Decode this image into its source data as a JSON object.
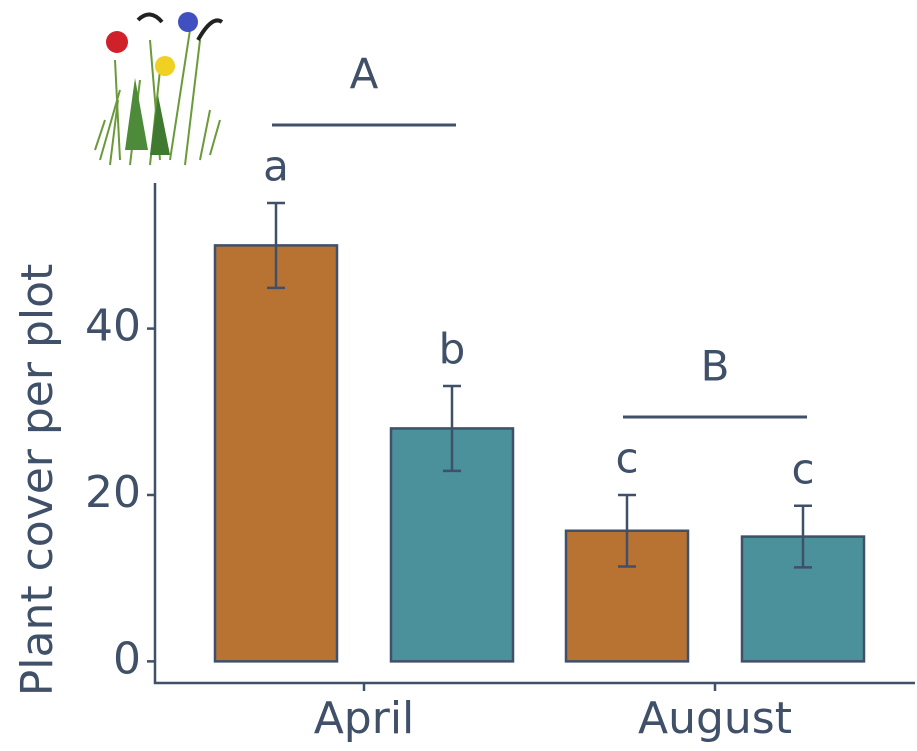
{
  "chart_data": {
    "type": "bar",
    "y_label": "Plant cover per plot",
    "categories": [
      "April",
      "August"
    ],
    "series": [
      {
        "color": "#b87333",
        "values": [
          50,
          15.7
        ],
        "errors": [
          5.1,
          4.3
        ],
        "letters": [
          "a",
          "c"
        ]
      },
      {
        "color": "#4a919b",
        "values": [
          28,
          15
        ],
        "errors": [
          5.1,
          3.7
        ],
        "letters": [
          "b",
          "c"
        ]
      }
    ],
    "group_labels": [
      "A",
      "B"
    ],
    "ylim": [
      -2.6,
      57.5
    ],
    "yticks": [
      0,
      20,
      40
    ],
    "grid": false
  }
}
